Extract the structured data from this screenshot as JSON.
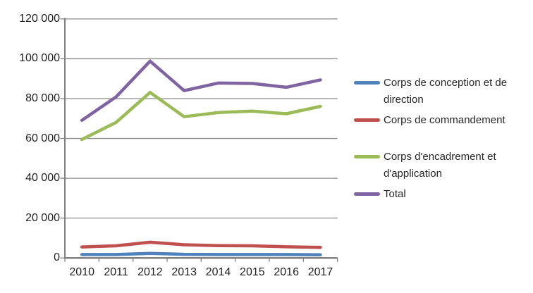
{
  "chart_data": {
    "type": "line",
    "title": "",
    "xlabel": "",
    "ylabel": "",
    "categories": [
      "2010",
      "2011",
      "2012",
      "2013",
      "2014",
      "2015",
      "2016",
      "2017"
    ],
    "series": [
      {
        "name": "Corps de conception et de direction",
        "color": "#4F81BD",
        "values": [
          1700,
          1700,
          2300,
          1800,
          1700,
          1700,
          1700,
          1600
        ]
      },
      {
        "name": "Corps de commandement",
        "color": "#C0504D",
        "values": [
          5500,
          6100,
          7900,
          6600,
          6200,
          6100,
          5600,
          5300
        ]
      },
      {
        "name": "Corps d'encadrement et d'application",
        "color": "#9BBB59",
        "values": [
          59500,
          68000,
          83100,
          70900,
          73000,
          73700,
          72400,
          76100
        ]
      },
      {
        "name": "Total",
        "color": "#8064A2",
        "values": [
          69100,
          80800,
          98800,
          84000,
          87800,
          87600,
          85700,
          89400
        ]
      }
    ],
    "ylim": [
      0,
      120000
    ],
    "y_tick_step": 20000,
    "y_tick_values": [
      0,
      20000,
      40000,
      60000,
      80000,
      100000,
      120000
    ],
    "y_tick_labels": [
      "0",
      "20 000",
      "40 000",
      "60 000",
      "80 000",
      "100 000",
      "120 000"
    ],
    "grid": "horizontal",
    "legend_position": "right",
    "colors": {
      "gridline": "#898989",
      "axis": "#808080",
      "text": "#262626",
      "background": "#FFFFFF"
    }
  }
}
